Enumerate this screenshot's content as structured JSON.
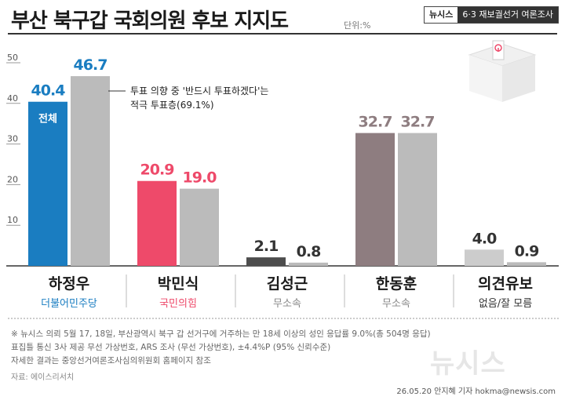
{
  "header": {
    "title": "부산 북구갑 국회의원 후보 지지도",
    "unit": "단위:%",
    "brand": "뉴시스",
    "brand_sub": "6·3 재보궐선거 여론조사"
  },
  "chart_data": {
    "type": "bar",
    "ylim": [
      0,
      50
    ],
    "yticks": [
      10,
      20,
      30,
      40,
      50
    ],
    "categories": [
      "하정우",
      "박민식",
      "김성근",
      "한동훈",
      "의견유보"
    ],
    "parties": [
      "더불어민주당",
      "국민의힘",
      "무소속",
      "무소속",
      "없음/잘 모름"
    ],
    "series": [
      {
        "name": "전체",
        "values": [
          40.4,
          20.9,
          2.1,
          32.7,
          4.0
        ]
      },
      {
        "values": [
          46.7,
          19.0,
          0.8,
          32.7,
          0.9
        ]
      }
    ],
    "total_colors": [
      "#1a7dc1",
      "#ee4a6a",
      "#4d4d4d",
      "#8e7d80",
      "#cccccc"
    ],
    "second_color": "#bbbbbb",
    "value_colors": [
      "#1a7dc1",
      "#ee4a6a",
      "#333333",
      "#8e7d80",
      "#333333"
    ],
    "party_colors": [
      "#1a7dc1",
      "#ee4a6a",
      "#888888",
      "#888888",
      "#333333"
    ],
    "total_label": "전체",
    "annotation": "투표 의향 중 '반드시 투표하겠다'는 적극 투표층(69.1%)"
  },
  "footnote": {
    "line1": "※ 뉴시스 의뢰 5월 17, 18일, 부산광역시 북구 갑 선거구에 거주하는 만 18세 이상의 성인 응답률 9.0%(총 504명 응답)",
    "line2": "표집틀 통신 3사 제공 무선 가상번호, ARS 조사 (무선 가상번호), ±4.4%P (95% 신뢰수준)",
    "line3": "자세한 결과는 중앙선거여론조사심의위원회 홈페이지 참조"
  },
  "source": "자료: 에이스리서치",
  "credit": "26.05.20 안지혜 기자 hokma@newsis.com",
  "watermark": "뉴시스"
}
